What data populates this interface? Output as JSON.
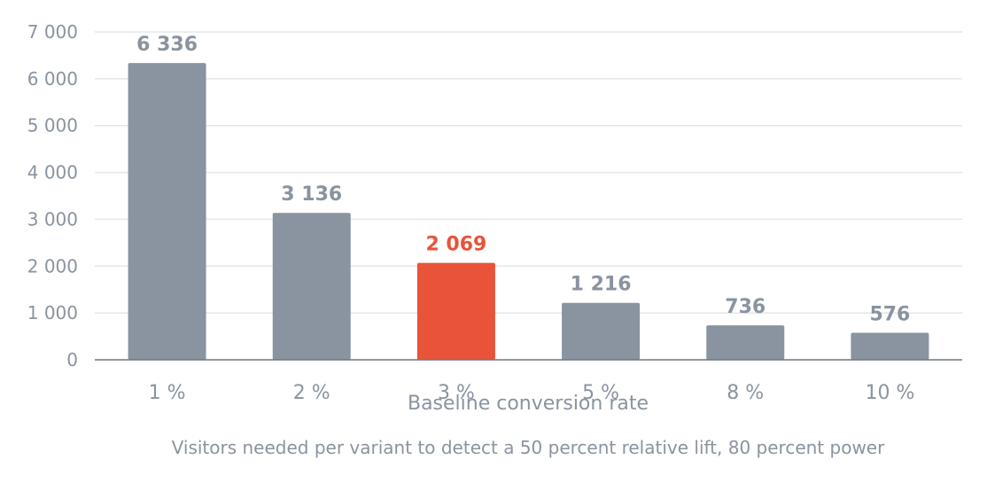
{
  "chart_data": {
    "type": "bar",
    "categories": [
      "1 %",
      "2 %",
      "3 %",
      "5 %",
      "8 %",
      "10 %"
    ],
    "values": [
      6336,
      3136,
      2069,
      1216,
      736,
      576
    ],
    "value_labels": [
      "6 336",
      "3 136",
      "2 069",
      "1 216",
      "736",
      "576"
    ],
    "highlight_category": "3 %",
    "xlabel": "Baseline conversion rate",
    "ylabel": "",
    "caption": "Visitors needed per variant to detect a 50 percent relative lift, 80 percent power",
    "ylim": [
      0,
      7000
    ],
    "yticks": [
      0,
      1000,
      2000,
      3000,
      4000,
      5000,
      6000,
      7000
    ],
    "ytick_labels": [
      "0",
      "1 000",
      "2 000",
      "3 000",
      "4 000",
      "5 000",
      "6 000",
      "7 000"
    ],
    "grid": true,
    "colors": {
      "bar": "#8a93a0",
      "highlight": "#e8533a",
      "label": "#8a93a0",
      "highlight_label": "#e8533a"
    }
  }
}
